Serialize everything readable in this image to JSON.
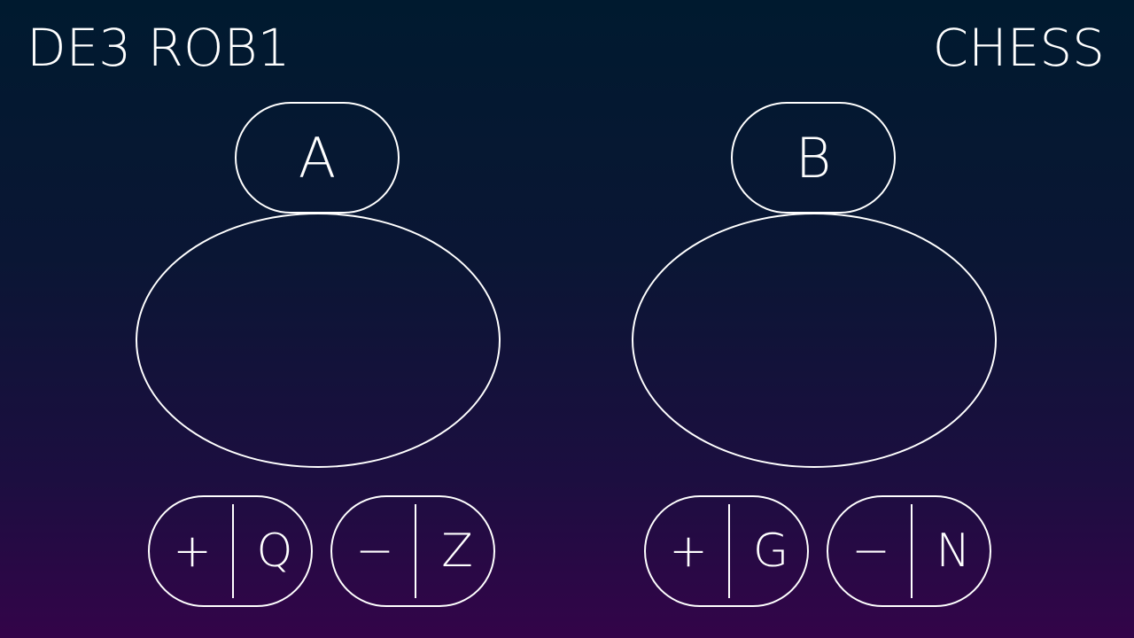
{
  "header": {
    "left_title": "DE3 ROB1",
    "right_title": "CHESS"
  },
  "players": [
    {
      "label": "A",
      "increment": {
        "symbol": "+",
        "key": "Q"
      },
      "decrement": {
        "symbol": "−",
        "key": "Z"
      }
    },
    {
      "label": "B",
      "increment": {
        "symbol": "+",
        "key": "G"
      },
      "decrement": {
        "symbol": "−",
        "key": "N"
      }
    }
  ],
  "colors": {
    "background_top": "#001a2f",
    "background_bottom": "#330449",
    "foreground": "#ffffff"
  }
}
